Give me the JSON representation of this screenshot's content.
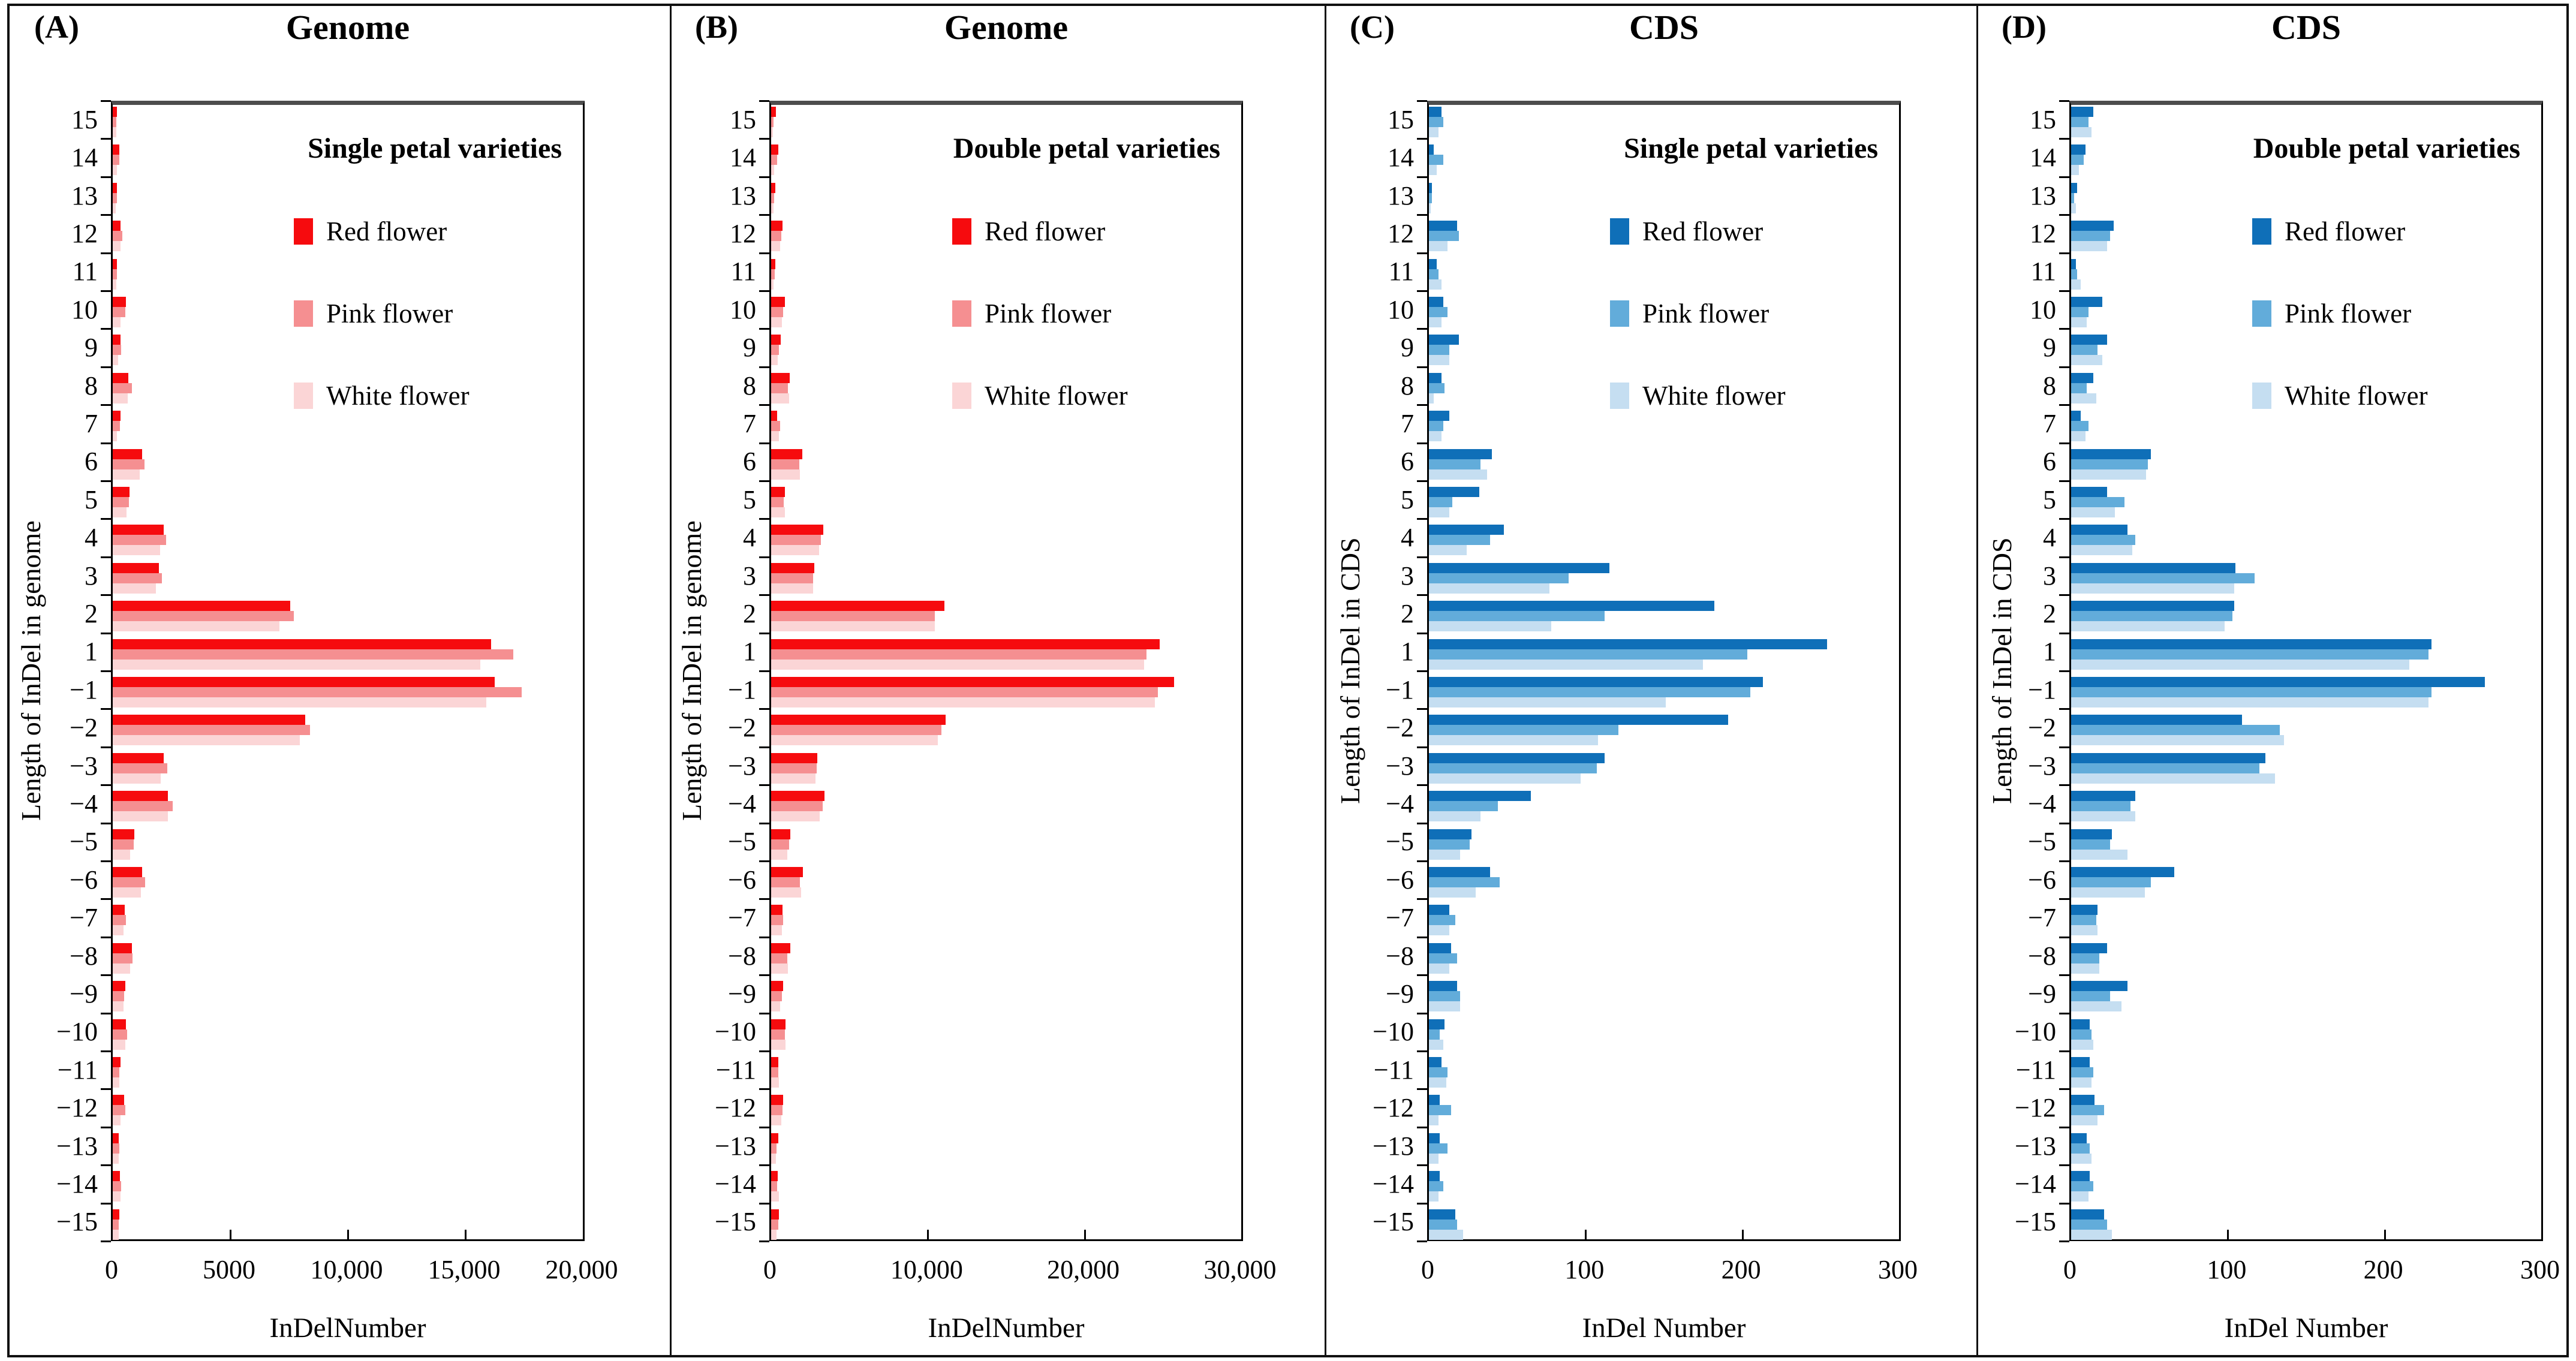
{
  "figure": {
    "description_labels": {
      "panel_a": "(A)",
      "panel_b": "(B)",
      "panel_c": "(C)",
      "panel_d": "(D)"
    },
    "colors": {
      "red_series": [
        "#f60b0e",
        "#f58f91",
        "#fbd5d6"
      ],
      "blue_series": [
        "#0f6fb8",
        "#62acda",
        "#c5def1"
      ],
      "axis": "#000000",
      "plot_top_border": "#4d4d4d"
    }
  },
  "chart_data": [
    {
      "type": "bar",
      "orientation": "horizontal",
      "panel_label": "(A)",
      "title": "Genome",
      "legend_title": "Single petal varieties",
      "legend_position": "top-right-inside",
      "xlabel": "InDelNumber",
      "ylabel": "Length of InDel in genome",
      "xlim": [
        0,
        20000
      ],
      "xticks": [
        0,
        5000,
        10000,
        15000,
        20000
      ],
      "xtick_labels": [
        "0",
        "5000",
        "10,000",
        "15,000",
        "20,000"
      ],
      "categories": [
        "15",
        "14",
        "13",
        "12",
        "11",
        "10",
        "9",
        "8",
        "7",
        "6",
        "5",
        "4",
        "3",
        "2",
        "1",
        "−1",
        "−2",
        "−3",
        "−4",
        "−5",
        "−6",
        "−7",
        "−8",
        "−9",
        "−10",
        "−11",
        "−12",
        "−13",
        "−14",
        "−15"
      ],
      "series": [
        {
          "name": "Red flower",
          "color": "#f60b0e",
          "values": [
            170,
            280,
            170,
            340,
            170,
            550,
            330,
            660,
            330,
            1250,
            720,
            2180,
            1970,
            7550,
            16100,
            16250,
            8200,
            2180,
            2340,
            910,
            1250,
            510,
            820,
            530,
            560,
            340,
            480,
            260,
            310,
            280
          ]
        },
        {
          "name": "Pink flower",
          "color": "#f58f91",
          "values": [
            165,
            275,
            180,
            400,
            175,
            540,
            345,
            810,
            310,
            1350,
            690,
            2260,
            2080,
            7700,
            17050,
            17400,
            8400,
            2310,
            2540,
            900,
            1380,
            560,
            830,
            480,
            620,
            280,
            530,
            280,
            360,
            250
          ]
        },
        {
          "name": "White flower",
          "color": "#fbd5d6",
          "values": [
            160,
            170,
            130,
            330,
            145,
            330,
            240,
            630,
            170,
            1160,
            590,
            2010,
            1840,
            7100,
            15650,
            15900,
            7950,
            2050,
            2340,
            740,
            1200,
            450,
            740,
            450,
            530,
            270,
            330,
            250,
            330,
            260
          ]
        }
      ]
    },
    {
      "type": "bar",
      "orientation": "horizontal",
      "panel_label": "(B)",
      "title": "Genome",
      "legend_title": "Double petal varieties",
      "legend_position": "top-right-inside",
      "xlabel": "InDelNumber",
      "ylabel": "Length of InDel in genome",
      "xlim": [
        0,
        30000
      ],
      "xticks": [
        0,
        10000,
        20000,
        30000
      ],
      "xtick_labels": [
        "0",
        "10,000",
        "20,000",
        "30,000"
      ],
      "categories": [
        "15",
        "14",
        "13",
        "12",
        "11",
        "10",
        "9",
        "8",
        "7",
        "6",
        "5",
        "4",
        "3",
        "2",
        "1",
        "−1",
        "−2",
        "−3",
        "−4",
        "−5",
        "−6",
        "−7",
        "−8",
        "−9",
        "−10",
        "−11",
        "−12",
        "−13",
        "−14",
        "−15"
      ],
      "series": [
        {
          "name": "Red flower",
          "color": "#f60b0e",
          "values": [
            320,
            450,
            280,
            740,
            280,
            870,
            610,
            1180,
            380,
            1980,
            870,
            3320,
            2750,
            11050,
            24800,
            25700,
            11150,
            2950,
            3400,
            1210,
            2040,
            730,
            1210,
            770,
            930,
            470,
            770,
            470,
            420,
            510
          ]
        },
        {
          "name": "Pink flower",
          "color": "#f58f91",
          "values": [
            150,
            380,
            190,
            640,
            230,
            770,
            510,
            1090,
            570,
            1790,
            790,
            3190,
            2680,
            10450,
            23950,
            24700,
            10850,
            2900,
            3300,
            1150,
            1850,
            770,
            1020,
            700,
            890,
            450,
            730,
            350,
            380,
            450
          ]
        },
        {
          "name": "White flower",
          "color": "#fbd5d6",
          "values": [
            130,
            190,
            150,
            570,
            150,
            700,
            410,
            1150,
            510,
            1850,
            870,
            3070,
            2680,
            10450,
            23800,
            24500,
            10650,
            2850,
            3100,
            1020,
            1910,
            700,
            1060,
            570,
            930,
            510,
            640,
            320,
            510,
            350
          ]
        }
      ]
    },
    {
      "type": "bar",
      "orientation": "horizontal",
      "panel_label": "(C)",
      "title": "CDS",
      "legend_title": "Single petal varieties",
      "legend_position": "top-right-inside",
      "xlabel": "InDel Number",
      "ylabel": "Length of InDel in CDS",
      "xlim": [
        0,
        300
      ],
      "xticks": [
        0,
        100,
        200,
        300
      ],
      "xtick_labels": [
        "0",
        "100",
        "200",
        "300"
      ],
      "categories": [
        "15",
        "14",
        "13",
        "12",
        "11",
        "10",
        "9",
        "8",
        "7",
        "6",
        "5",
        "4",
        "3",
        "2",
        "1",
        "−1",
        "−2",
        "−3",
        "−4",
        "−5",
        "−6",
        "−7",
        "−8",
        "−9",
        "−10",
        "−11",
        "−12",
        "−13",
        "−14",
        "−15"
      ],
      "series": [
        {
          "name": "Red flower",
          "color": "#0f6fb8",
          "values": [
            8,
            3,
            2,
            18,
            5,
            9,
            19,
            8,
            13,
            40,
            32,
            48,
            115,
            182,
            254,
            213,
            191,
            112,
            65,
            27,
            39,
            13,
            14,
            18,
            10,
            8,
            7,
            7,
            7,
            17
          ]
        },
        {
          "name": "Pink flower",
          "color": "#62acda",
          "values": [
            9,
            9,
            2,
            19,
            6,
            12,
            13,
            10,
            9,
            33,
            15,
            39,
            89,
            112,
            203,
            205,
            121,
            107,
            44,
            26,
            45,
            17,
            18,
            20,
            7,
            12,
            14,
            12,
            9,
            18
          ]
        },
        {
          "name": "White flower",
          "color": "#c5def1",
          "values": [
            6,
            5,
            1,
            12,
            8,
            8,
            13,
            3,
            8,
            37,
            13,
            24,
            77,
            78,
            175,
            151,
            108,
            97,
            33,
            20,
            30,
            13,
            13,
            20,
            9,
            11,
            6,
            6,
            6,
            22
          ]
        }
      ]
    },
    {
      "type": "bar",
      "orientation": "horizontal",
      "panel_label": "(D)",
      "title": "CDS",
      "legend_title": "Double petal varieties",
      "legend_position": "top-right-inside",
      "xlabel": "InDel Number",
      "ylabel": "Length of InDel in CDS",
      "xlim": [
        0,
        300
      ],
      "xticks": [
        0,
        100,
        200,
        300
      ],
      "xtick_labels": [
        "0",
        "100",
        "200",
        "300"
      ],
      "categories": [
        "15",
        "14",
        "13",
        "12",
        "11",
        "10",
        "9",
        "8",
        "7",
        "6",
        "5",
        "4",
        "3",
        "2",
        "1",
        "−1",
        "−2",
        "−3",
        "−4",
        "−5",
        "−6",
        "−7",
        "−8",
        "−9",
        "−10",
        "−11",
        "−12",
        "−13",
        "−14",
        "−15"
      ],
      "series": [
        {
          "name": "Red flower",
          "color": "#0f6fb8",
          "values": [
            14,
            9,
            4,
            27,
            3,
            20,
            23,
            14,
            6,
            51,
            23,
            36,
            105,
            104,
            230,
            264,
            109,
            124,
            41,
            26,
            66,
            17,
            23,
            36,
            12,
            12,
            15,
            10,
            12,
            21
          ]
        },
        {
          "name": "Pink flower",
          "color": "#62acda",
          "values": [
            11,
            8,
            2,
            25,
            4,
            11,
            17,
            10,
            11,
            49,
            34,
            41,
            117,
            103,
            228,
            230,
            133,
            120,
            38,
            25,
            51,
            16,
            18,
            25,
            13,
            14,
            21,
            12,
            14,
            23
          ]
        },
        {
          "name": "White flower",
          "color": "#c5def1",
          "values": [
            13,
            5,
            3,
            23,
            6,
            10,
            20,
            16,
            9,
            48,
            28,
            39,
            104,
            98,
            216,
            228,
            136,
            130,
            41,
            36,
            47,
            17,
            18,
            32,
            14,
            13,
            17,
            13,
            11,
            26
          ]
        }
      ]
    }
  ]
}
